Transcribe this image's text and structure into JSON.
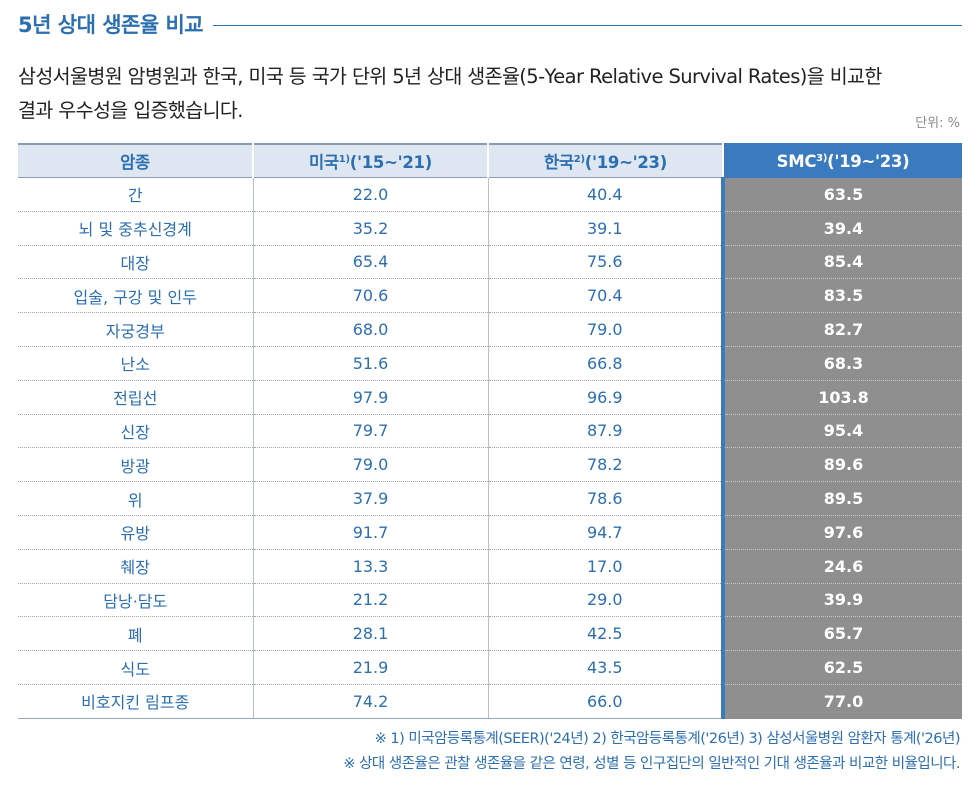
{
  "section": {
    "title": "5년 상대 생존율 비교"
  },
  "intro": {
    "line1": "삼성서울병원 암병원과 한국, 미국 등 국가 단위 5년 상대 생존율(5-Year Relative Survival Rates)을 비교한",
    "line2": "결과 우수성을 입증했습니다."
  },
  "unit": "단위: %",
  "table": {
    "headers": {
      "cancer": "암종",
      "us": {
        "label": "미국",
        "sup": "1)",
        "period": "('15~'21)"
      },
      "kr": {
        "label": "한국",
        "sup": "2)",
        "period": "('19~'23)"
      },
      "smc": {
        "label": "SMC",
        "sup": "3)",
        "period": "('19~'23)"
      }
    },
    "rows": [
      {
        "cancer": "간",
        "us": "22.0",
        "kr": "40.4",
        "smc": "63.5"
      },
      {
        "cancer": "뇌 및 중추신경계",
        "us": "35.2",
        "kr": "39.1",
        "smc": "39.4"
      },
      {
        "cancer": "대장",
        "us": "65.4",
        "kr": "75.6",
        "smc": "85.4"
      },
      {
        "cancer": "입술, 구강 및 인두",
        "us": "70.6",
        "kr": "70.4",
        "smc": "83.5"
      },
      {
        "cancer": "자궁경부",
        "us": "68.0",
        "kr": "79.0",
        "smc": "82.7"
      },
      {
        "cancer": "난소",
        "us": "51.6",
        "kr": "66.8",
        "smc": "68.3"
      },
      {
        "cancer": "전립선",
        "us": "97.9",
        "kr": "96.9",
        "smc": "103.8"
      },
      {
        "cancer": "신장",
        "us": "79.7",
        "kr": "87.9",
        "smc": "95.4"
      },
      {
        "cancer": "방광",
        "us": "79.0",
        "kr": "78.2",
        "smc": "89.6"
      },
      {
        "cancer": "위",
        "us": "37.9",
        "kr": "78.6",
        "smc": "89.5"
      },
      {
        "cancer": "유방",
        "us": "91.7",
        "kr": "94.7",
        "smc": "97.6"
      },
      {
        "cancer": "췌장",
        "us": "13.3",
        "kr": "17.0",
        "smc": "24.6"
      },
      {
        "cancer": "담낭·담도",
        "us": "21.2",
        "kr": "29.0",
        "smc": "39.9"
      },
      {
        "cancer": "폐",
        "us": "28.1",
        "kr": "42.5",
        "smc": "65.7"
      },
      {
        "cancer": "식도",
        "us": "21.9",
        "kr": "43.5",
        "smc": "62.5"
      },
      {
        "cancer": "비호지킨 림프종",
        "us": "74.2",
        "kr": "66.0",
        "smc": "77.0"
      }
    ]
  },
  "notes": {
    "sources": "※ 1) 미국암등록통계(SEER)('24년)  2) 한국암등록통계('26년)  3) 삼성서울병원 암환자 통계('26년)",
    "definition": "※ 상대 생존율은 관찰 생존율을 같은 연령, 성별 등 인구집단의 일반적인 기대 생존율과 비교한 비율입니다."
  },
  "colors": {
    "accent": "#2c6fb1",
    "header_bg": "#dde6f1",
    "smc_header": "#3a7bbf",
    "smc_cell": "#8f8f8f"
  }
}
